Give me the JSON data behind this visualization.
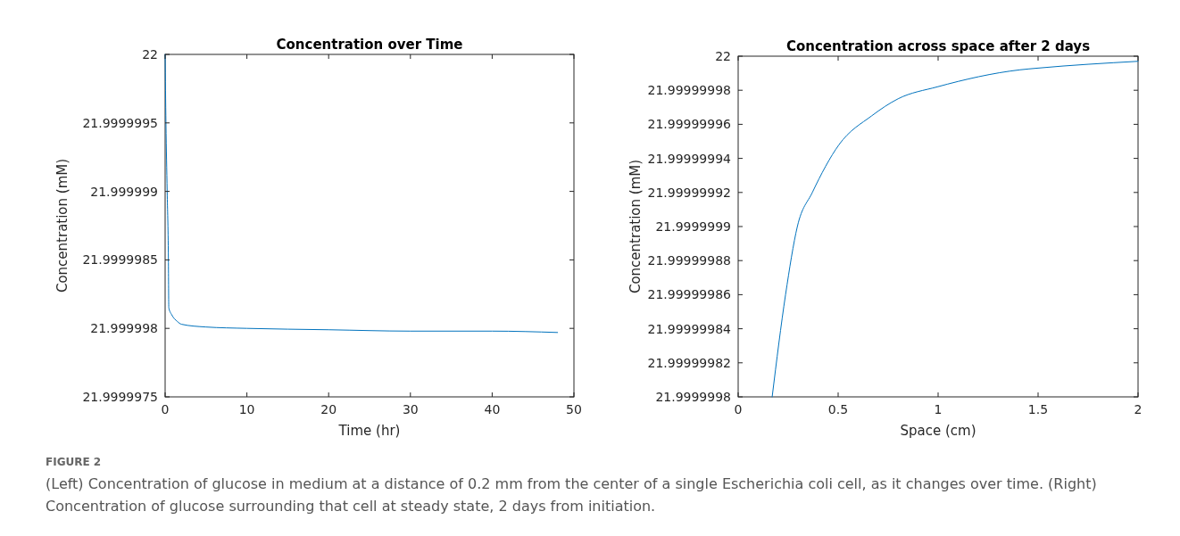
{
  "chart_data": [
    {
      "type": "line",
      "title": "Concentration over Time",
      "xlabel": "Time (hr)",
      "ylabel": "Concentration (mM)",
      "series": [
        {
          "color": "#0072bd",
          "x": [
            0,
            0.1,
            0.25,
            0.4,
            0.45,
            0.8,
            1.5,
            2,
            5,
            10,
            20,
            30,
            40,
            48
          ],
          "values": [
            22,
            21.9999995,
            21.999999,
            21.9999985,
            21.99999815,
            21.9999981,
            21.99999805,
            21.99999803,
            21.99999801,
            21.999998,
            21.99999799,
            21.99999798,
            21.99999798,
            21.99999797
          ]
        }
      ],
      "xlim": [
        0,
        50
      ],
      "xticks": [
        0,
        10,
        20,
        30,
        40,
        50
      ],
      "ylim": [
        21.9999975,
        22
      ],
      "yticks": [
        21.9999975,
        21.999998,
        21.9999985,
        21.999999,
        21.9999995,
        22
      ],
      "grid": false,
      "marker": "none",
      "line_style": "solid",
      "annotations": [
        "FIGURE 2",
        "(Left) Concentration of glucose in medium at a distance of 0.2 mm from the center of a single Escherichia coli cell, as it changes over time. (Right) Concentration of glucose surrounding that cell at steady state, 2 days from initiation."
      ]
    },
    {
      "type": "line",
      "title": "Concentration across space after 2 days",
      "xlabel": "Space (cm)",
      "ylabel": "Concentration (mM)",
      "series": [
        {
          "color": "#0072bd",
          "x": [
            0.17,
            0.237,
            0.296,
            0.371,
            0.504,
            0.668,
            0.8,
            0.996,
            1.41,
            1.5,
            2
          ],
          "values": [
            21.9999998,
            21.99999986,
            21.9999999,
            21.99999992,
            21.999999948,
            21.999999965,
            21.999999975,
            21.999999982,
            21.999999992,
            21.999999993,
            21.999999997
          ]
        }
      ],
      "xlim": [
        0,
        2
      ],
      "xticks": [
        0,
        0.5,
        1,
        1.5,
        2
      ],
      "ylim": [
        21.9999998,
        22
      ],
      "yticks": [
        21.9999998,
        21.99999982,
        21.99999984,
        21.99999986,
        21.99999988,
        21.9999999,
        21.99999992,
        21.99999994,
        21.99999996,
        21.99999998,
        22
      ],
      "grid": false,
      "marker": "none",
      "line_style": "solid"
    }
  ]
}
